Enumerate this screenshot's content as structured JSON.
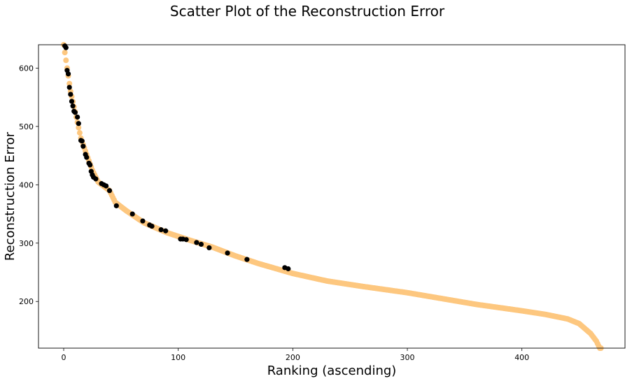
{
  "chart_data": {
    "type": "scatter",
    "title": "Scatter Plot of the Reconstruction Error",
    "xlabel": "Ranking (ascending)",
    "ylabel": "Reconstruction Error",
    "xlim": [
      -22,
      490
    ],
    "ylim": [
      120,
      640
    ],
    "xticks": [
      0,
      100,
      200,
      300,
      400
    ],
    "yticks": [
      200,
      300,
      400,
      500,
      600
    ],
    "grid": false,
    "legend": "none",
    "colors": {
      "normal": "#fdc77f",
      "anomaly": "#000000"
    },
    "curve_anchors": [
      [
        0,
        640
      ],
      [
        3,
        600
      ],
      [
        6,
        560
      ],
      [
        10,
        525
      ],
      [
        15,
        480
      ],
      [
        20,
        452
      ],
      [
        25,
        425
      ],
      [
        30,
        405
      ],
      [
        40,
        390
      ],
      [
        45,
        370
      ],
      [
        55,
        355
      ],
      [
        70,
        335
      ],
      [
        90,
        318
      ],
      [
        110,
        305
      ],
      [
        130,
        293
      ],
      [
        150,
        278
      ],
      [
        170,
        265
      ],
      [
        200,
        248
      ],
      [
        230,
        235
      ],
      [
        260,
        226
      ],
      [
        300,
        215
      ],
      [
        330,
        205
      ],
      [
        360,
        195
      ],
      [
        400,
        184
      ],
      [
        420,
        178
      ],
      [
        440,
        170
      ],
      [
        450,
        162
      ],
      [
        460,
        145
      ],
      [
        465,
        132
      ],
      [
        468,
        120
      ]
    ],
    "n_points": 470,
    "series": [
      {
        "role": "anomaly",
        "x": [
          1,
          2,
          3,
          4,
          5,
          6,
          7,
          8,
          9,
          10,
          12,
          13,
          15,
          16,
          17,
          19,
          20,
          22,
          23,
          24,
          25,
          26,
          28,
          33,
          35,
          37,
          40,
          46,
          60,
          69,
          75,
          77,
          85,
          89,
          102,
          104,
          107,
          116,
          120,
          127,
          143,
          160,
          193,
          196
        ],
        "y": [
          638,
          635,
          596,
          590,
          567,
          555,
          543,
          535,
          526,
          524,
          516,
          505,
          476,
          475,
          466,
          452,
          447,
          437,
          434,
          423,
          417,
          413,
          410,
          402,
          400,
          398,
          390,
          364,
          350,
          338,
          331,
          329,
          323,
          321,
          307,
          307,
          306,
          301,
          298,
          292,
          283,
          272,
          258,
          256
        ]
      }
    ]
  }
}
